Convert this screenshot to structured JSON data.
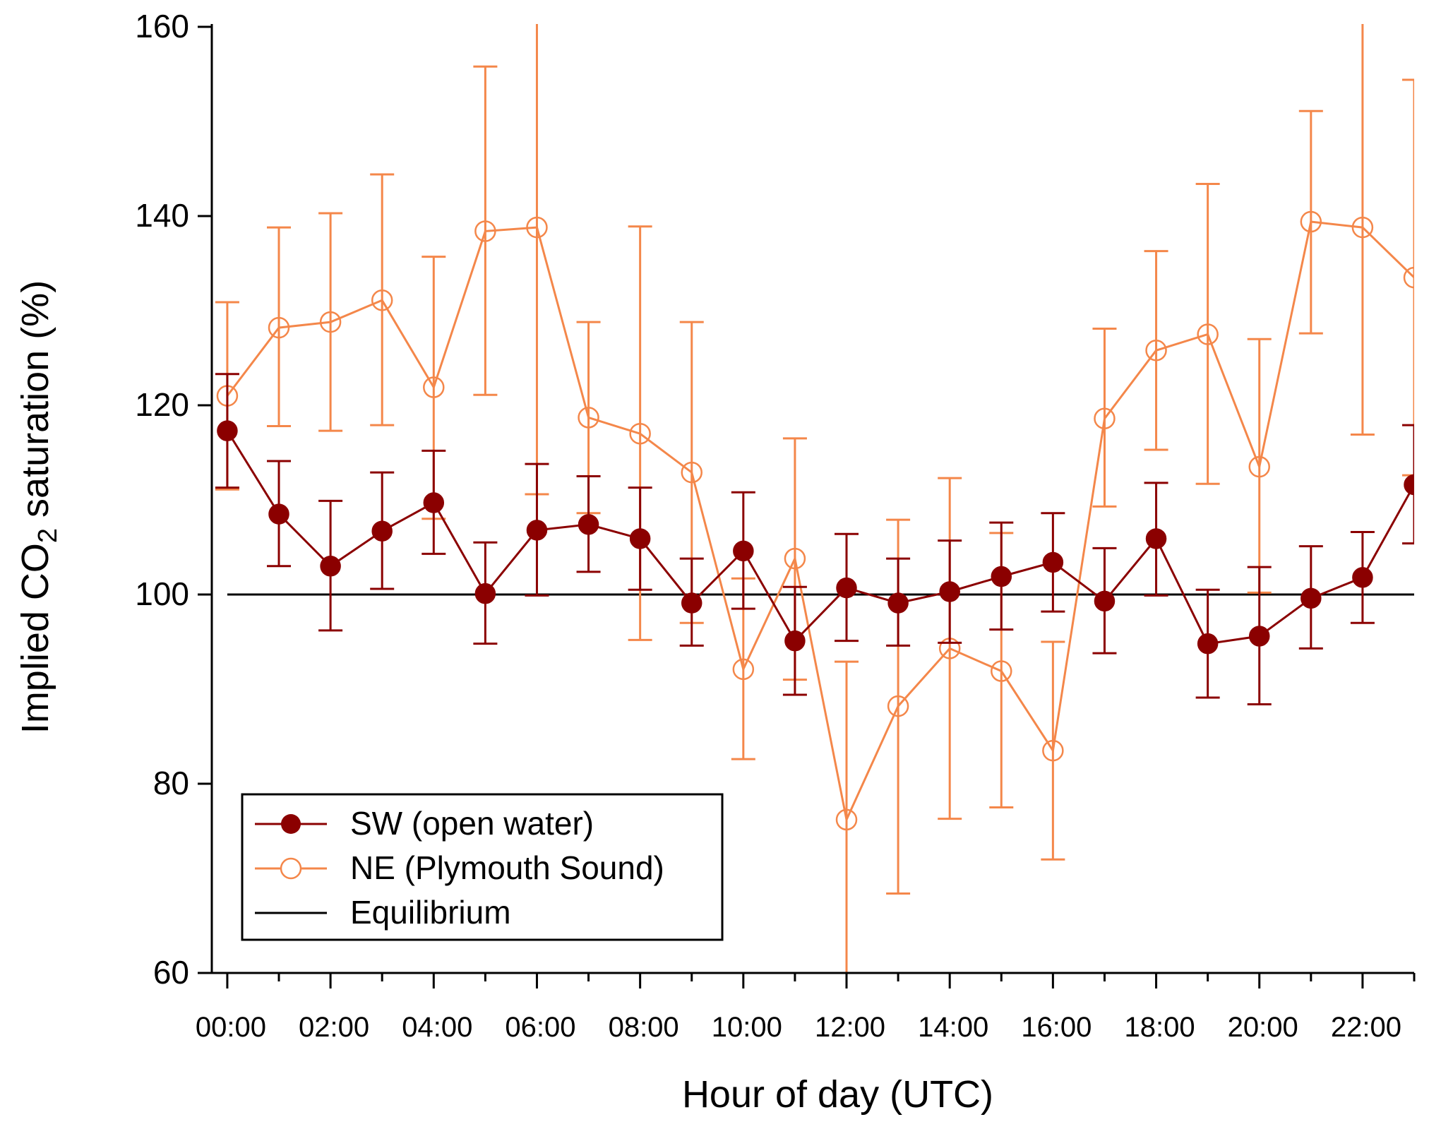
{
  "chart_data": {
    "type": "line",
    "title": "",
    "xlabel": "Hour of day (UTC)",
    "ylabel_prefix": "Implied CO",
    "ylabel_subscript": "2",
    "ylabel_suffix": " saturation (%)",
    "ylim": [
      60,
      160
    ],
    "xlim": [
      -0.3,
      23
    ],
    "yticks": [
      60,
      80,
      100,
      120,
      140,
      160
    ],
    "xticks": [
      {
        "x": 0,
        "label": "00:00"
      },
      {
        "x": 2,
        "label": "02:00"
      },
      {
        "x": 4,
        "label": "04:00"
      },
      {
        "x": 6,
        "label": "06:00"
      },
      {
        "x": 8,
        "label": "08:00"
      },
      {
        "x": 10,
        "label": "10:00"
      },
      {
        "x": 12,
        "label": "12:00"
      },
      {
        "x": 14,
        "label": "14:00"
      },
      {
        "x": 16,
        "label": "16:00"
      },
      {
        "x": 18,
        "label": "18:00"
      },
      {
        "x": 20,
        "label": "20:00"
      },
      {
        "x": 22,
        "label": "22:00"
      }
    ],
    "grid": false,
    "legend_position": "bottom-left",
    "x": [
      0,
      1,
      2,
      3,
      4,
      5,
      6,
      7,
      8,
      9,
      10,
      11,
      12,
      13,
      14,
      15,
      16,
      17,
      18,
      19,
      20,
      21,
      22,
      23
    ],
    "series": [
      {
        "name": "SW (open water)",
        "color": "#8b0000",
        "marker": "filled-circle",
        "values": [
          117.3,
          108.5,
          103.0,
          106.7,
          109.7,
          100.1,
          106.8,
          107.4,
          105.9,
          99.1,
          104.6,
          95.1,
          100.7,
          99.1,
          100.3,
          101.9,
          103.4,
          99.3,
          105.9,
          94.8,
          95.6,
          99.6,
          101.8,
          111.6
        ],
        "err_low": [
          111.3,
          103.0,
          96.2,
          100.6,
          104.3,
          94.8,
          99.9,
          102.4,
          100.5,
          94.6,
          98.5,
          89.4,
          95.1,
          94.6,
          94.9,
          96.3,
          98.2,
          93.8,
          99.9,
          89.1,
          88.4,
          94.3,
          97.0,
          105.4
        ],
        "err_high": [
          123.3,
          114.1,
          109.9,
          112.9,
          115.2,
          105.5,
          113.8,
          112.5,
          111.3,
          103.8,
          110.8,
          100.8,
          106.4,
          103.8,
          105.7,
          107.6,
          108.6,
          104.9,
          111.8,
          100.5,
          102.9,
          105.1,
          106.6,
          117.9
        ]
      },
      {
        "name": "NE (Plymouth Sound)",
        "color": "#f4874a",
        "marker": "open-circle",
        "values": [
          121.0,
          128.2,
          128.8,
          131.1,
          121.9,
          138.4,
          138.8,
          118.7,
          117.0,
          112.9,
          92.1,
          103.8,
          76.2,
          88.2,
          94.3,
          91.9,
          83.5,
          118.6,
          125.8,
          127.5,
          113.5,
          139.4,
          138.8,
          133.5
        ],
        "err_low": [
          111.1,
          117.8,
          117.3,
          117.9,
          108.0,
          121.1,
          110.6,
          108.6,
          95.2,
          97.0,
          82.6,
          91.0,
          59.5,
          68.4,
          76.3,
          77.5,
          72.0,
          109.3,
          115.3,
          111.7,
          100.2,
          127.6,
          116.9,
          112.6
        ],
        "err_high": [
          130.9,
          138.8,
          140.3,
          144.4,
          135.7,
          155.8,
          167.0,
          128.8,
          138.9,
          128.8,
          101.7,
          116.5,
          92.9,
          107.9,
          112.3,
          106.5,
          95.0,
          128.1,
          136.3,
          143.4,
          127.0,
          151.1,
          160.6,
          154.4
        ]
      },
      {
        "name": "Equilibrium",
        "color": "#000000",
        "marker": "none",
        "constant": 100
      }
    ]
  }
}
